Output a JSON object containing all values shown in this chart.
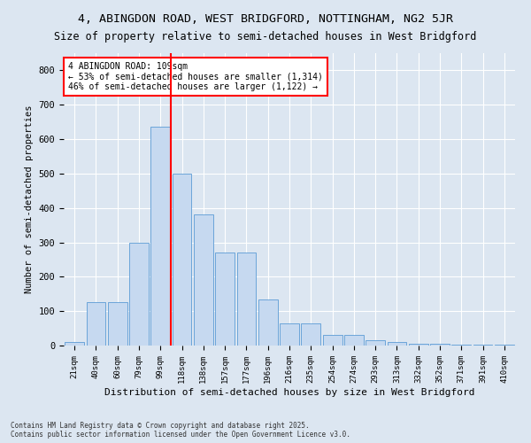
{
  "title": "4, ABINGDON ROAD, WEST BRIDGFORD, NOTTINGHAM, NG2 5JR",
  "subtitle": "Size of property relative to semi-detached houses in West Bridgford",
  "xlabel": "Distribution of semi-detached houses by size in West Bridgford",
  "ylabel": "Number of semi-detached properties",
  "bar_labels": [
    "21sqm",
    "40sqm",
    "60sqm",
    "79sqm",
    "99sqm",
    "118sqm",
    "138sqm",
    "157sqm",
    "177sqm",
    "196sqm",
    "216sqm",
    "235sqm",
    "254sqm",
    "274sqm",
    "293sqm",
    "313sqm",
    "332sqm",
    "352sqm",
    "371sqm",
    "391sqm",
    "410sqm"
  ],
  "bar_values": [
    10,
    125,
    125,
    300,
    635,
    500,
    380,
    270,
    270,
    135,
    65,
    65,
    30,
    30,
    15,
    10,
    5,
    5,
    3,
    2,
    2
  ],
  "bar_color": "#c6d9f0",
  "bar_edge_color": "#5b9bd5",
  "vline_x": 4.5,
  "vline_color": "red",
  "annotation_title": "4 ABINGDON ROAD: 109sqm",
  "annotation_line1": "← 53% of semi-detached houses are smaller (1,314)",
  "annotation_line2": "46% of semi-detached houses are larger (1,122) →",
  "annotation_box_color": "white",
  "annotation_box_edge": "red",
  "ylim": [
    0,
    850
  ],
  "yticks": [
    0,
    100,
    200,
    300,
    400,
    500,
    600,
    700,
    800
  ],
  "footer_line1": "Contains HM Land Registry data © Crown copyright and database right 2025.",
  "footer_line2": "Contains public sector information licensed under the Open Government Licence v3.0.",
  "bg_color": "#dce6f1",
  "plot_bg": "#dce6f1",
  "grid_color": "#ffffff",
  "title_fontsize": 9.5,
  "subtitle_fontsize": 8.5
}
